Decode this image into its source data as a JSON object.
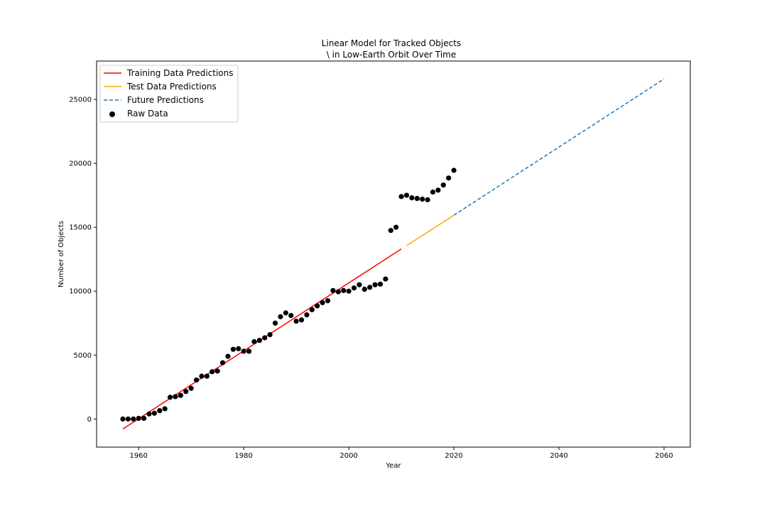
{
  "chart_data": {
    "type": "line",
    "title_lines": [
      "Linear Model for Tracked Objects",
      "\\ in Low-Earth Orbit Over Time"
    ],
    "xlabel": "Year",
    "ylabel": "Number of Objects",
    "xlim": [
      1952,
      2065
    ],
    "ylim": [
      -2200,
      28000
    ],
    "xticks": [
      1960,
      1980,
      2000,
      2020,
      2040,
      2060
    ],
    "yticks": [
      0,
      5000,
      10000,
      15000,
      20000,
      25000
    ],
    "grid": false,
    "legend_position": "top-left",
    "series": [
      {
        "name": "Training Data Predictions",
        "kind": "line",
        "style": "solid",
        "color": "#ff0000",
        "x": [
          1957,
          2010
        ],
        "y": [
          -780,
          13300
        ]
      },
      {
        "name": "Test Data Predictions",
        "kind": "line",
        "style": "solid",
        "color": "#ffa500",
        "x": [
          2011,
          2020
        ],
        "y": [
          13560,
          15940
        ]
      },
      {
        "name": "Future Predictions",
        "kind": "line",
        "style": "dashed",
        "color": "#1f77b4",
        "x": [
          2020,
          2060
        ],
        "y": [
          15940,
          26600
        ]
      },
      {
        "name": "Raw Data",
        "kind": "scatter",
        "color": "#000000",
        "x": [
          1957,
          1958,
          1959,
          1960,
          1961,
          1962,
          1963,
          1964,
          1965,
          1966,
          1967,
          1968,
          1969,
          1970,
          1971,
          1972,
          1973,
          1974,
          1975,
          1976,
          1977,
          1978,
          1979,
          1980,
          1981,
          1982,
          1983,
          1984,
          1985,
          1986,
          1987,
          1988,
          1989,
          1990,
          1991,
          1992,
          1993,
          1994,
          1995,
          1996,
          1997,
          1998,
          1999,
          2000,
          2001,
          2002,
          2003,
          2004,
          2005,
          2006,
          2007,
          2008,
          2009,
          2010,
          2011,
          2012,
          2013,
          2014,
          2015,
          2016,
          2017,
          2018,
          2019,
          2020
        ],
        "y": [
          0,
          0,
          0,
          50,
          50,
          400,
          450,
          650,
          800,
          1700,
          1750,
          1850,
          2150,
          2400,
          3050,
          3350,
          3350,
          3700,
          3750,
          4400,
          4900,
          5450,
          5500,
          5300,
          5300,
          6050,
          6150,
          6350,
          6600,
          7500,
          8000,
          8300,
          8100,
          7650,
          7750,
          8150,
          8550,
          8850,
          9100,
          9250,
          10050,
          9950,
          10050,
          10000,
          10250,
          10500,
          10150,
          10300,
          10500,
          10550,
          10950,
          14750,
          15000,
          17400,
          17500,
          17300,
          17250,
          17200,
          17150,
          17750,
          17900,
          18300,
          18850,
          19450
        ]
      }
    ]
  }
}
